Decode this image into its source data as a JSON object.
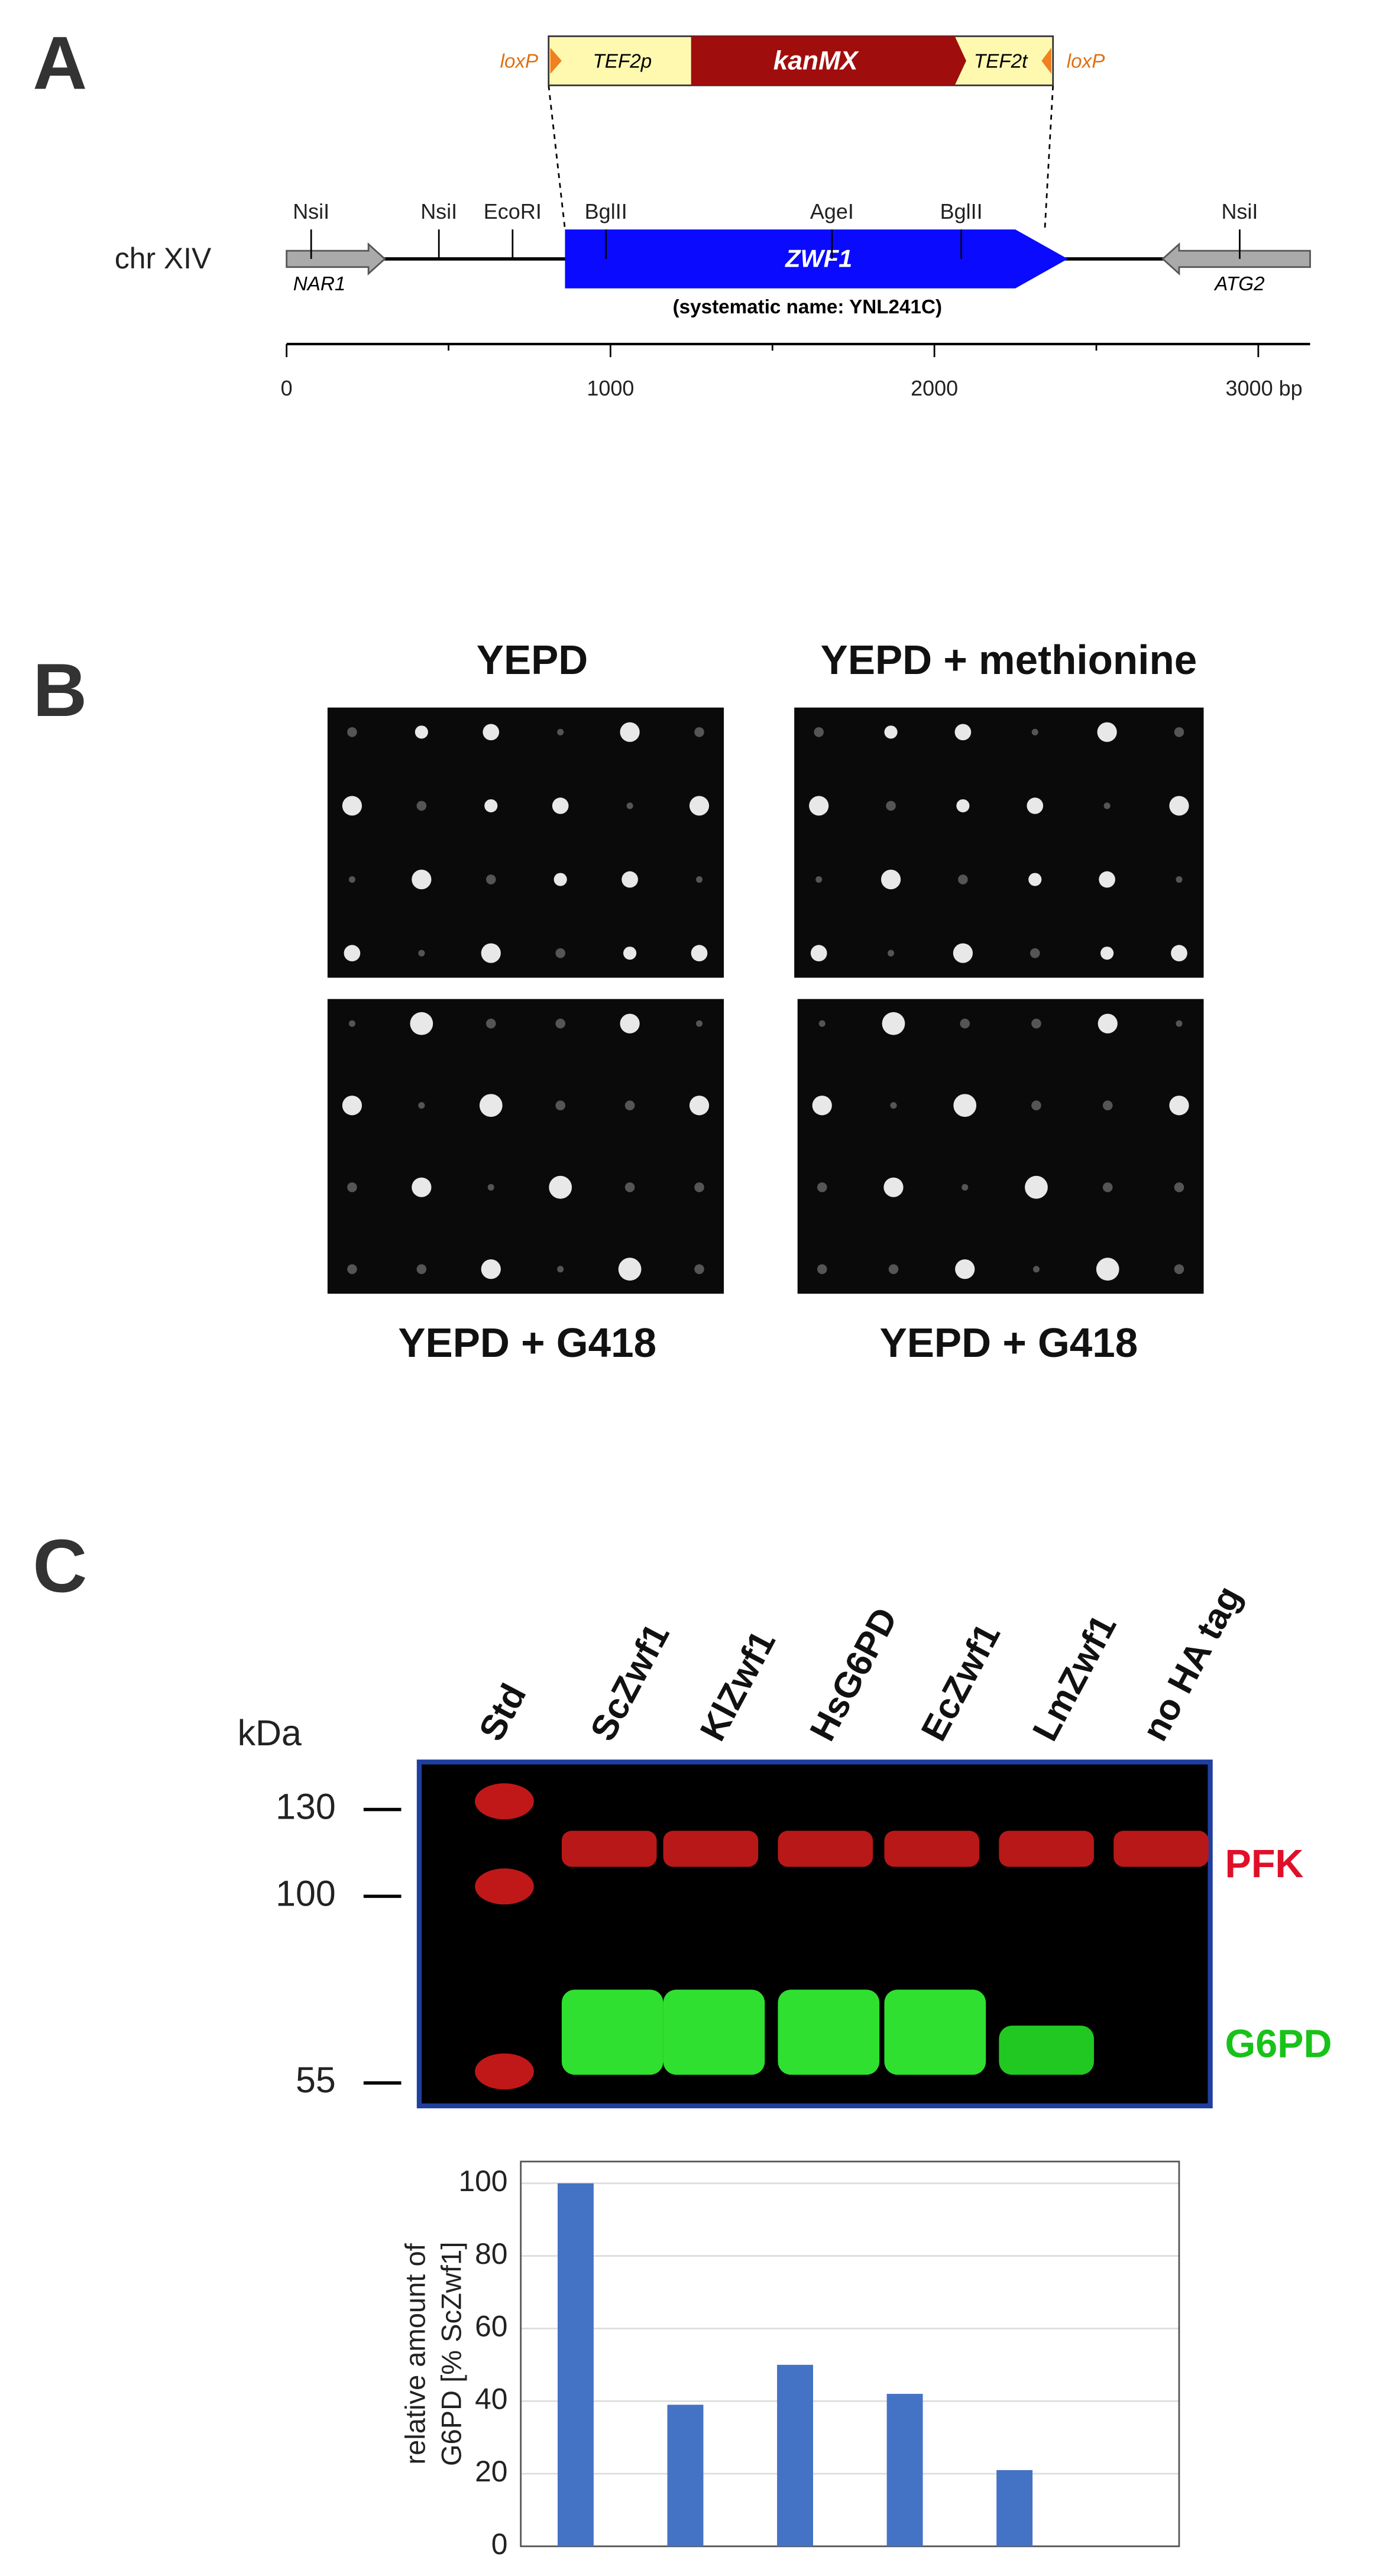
{
  "panel_a": {
    "label": "A",
    "cassette": {
      "loxp_left": "loxP",
      "promoter": "TEF2p",
      "marker": "kanMX",
      "terminator": "TEF2t",
      "loxp_right": "loxP"
    },
    "chromosome": "chr XIV",
    "gene": "ZWF1",
    "systematic_name": "(systematic name: YNL241C)",
    "left_gene": "NAR1",
    "right_gene": "ATG2",
    "sites": [
      "NsiI",
      "NsiI",
      "EcoRI",
      "BglII",
      "AgeI",
      "BglII",
      "NsiI"
    ],
    "scale": {
      "xlim": [
        0,
        3160
      ],
      "xticks": [
        0,
        1000,
        2000,
        {
          "value": 3000,
          "label": "3000 bp"
        }
      ]
    }
  },
  "panel_b": {
    "label": "B",
    "top_left": "YEPD",
    "top_right": "YEPD + methionine",
    "bottom_left": "YEPD + G418",
    "bottom_right": "YEPD + G418"
  },
  "panel_c": {
    "label": "C",
    "lanes": [
      "Std",
      "ScZwf1",
      "KlZwf1",
      "HsG6PD",
      "EcZwf1",
      "LmZwf1",
      "no HA tag"
    ],
    "unit": "kDa",
    "markers": [
      130,
      100,
      55
    ],
    "band_upper": "PFK",
    "band_lower": "G6PD"
  },
  "chart_data": {
    "type": "bar",
    "y_label": [
      "relative amount of",
      "G6PD  [% ScZwf1]"
    ],
    "categories": [
      null,
      null,
      null,
      null,
      null,
      null
    ],
    "values": [
      100,
      39,
      50,
      42,
      21,
      null
    ],
    "color": "#4472c4",
    "ylim": [
      0,
      106
    ],
    "yticks": [
      0,
      20,
      40,
      60,
      80,
      100
    ],
    "grid": true
  }
}
